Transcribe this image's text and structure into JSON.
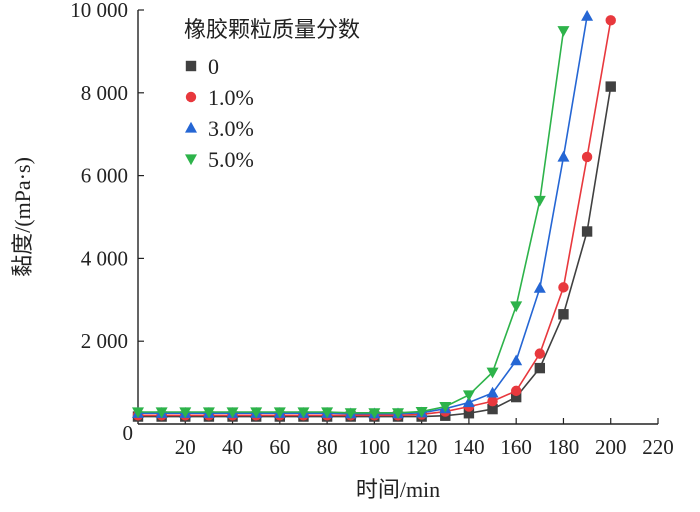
{
  "chart_data": {
    "type": "line",
    "title": "",
    "xlabel": "时间/min",
    "ylabel": "黏度/(mPa·s)",
    "xlim": [
      0,
      220
    ],
    "ylim": [
      0,
      10000
    ],
    "x_ticks": [
      "20",
      "40",
      "60",
      "80",
      "100",
      "120",
      "140",
      "160",
      "180",
      "200",
      "220"
    ],
    "y_ticks": [
      "0",
      "2 000",
      "4 000",
      "6 000",
      "8 000",
      "10 000"
    ],
    "grid": false,
    "legend": {
      "title": "橡胶颗粒质量分数",
      "placement": "top-left"
    },
    "series": [
      {
        "name": "0",
        "color": "#404040",
        "marker": "square",
        "x": [
          0,
          10,
          20,
          30,
          40,
          50,
          60,
          70,
          80,
          90,
          100,
          110,
          120,
          130,
          140,
          150,
          160,
          170,
          180,
          190,
          200
        ],
        "y": [
          180,
          180,
          180,
          180,
          180,
          180,
          180,
          180,
          180,
          180,
          180,
          180,
          180,
          200,
          260,
          360,
          650,
          1350,
          2650,
          4650,
          8150
        ]
      },
      {
        "name": "1.0%",
        "color": "#e8383d",
        "marker": "circle",
        "x": [
          0,
          10,
          20,
          30,
          40,
          50,
          60,
          70,
          80,
          90,
          100,
          110,
          120,
          130,
          140,
          150,
          160,
          170,
          180,
          190,
          200
        ],
        "y": [
          210,
          210,
          210,
          210,
          210,
          210,
          210,
          210,
          210,
          210,
          210,
          210,
          230,
          300,
          420,
          550,
          800,
          1700,
          3300,
          6450,
          9750
        ]
      },
      {
        "name": "3.0%",
        "color": "#2566d4",
        "marker": "triangle-up",
        "x": [
          0,
          10,
          20,
          30,
          40,
          50,
          60,
          70,
          80,
          90,
          100,
          110,
          120,
          130,
          140,
          150,
          160,
          170,
          180,
          190
        ],
        "y": [
          260,
          260,
          260,
          260,
          260,
          260,
          260,
          260,
          260,
          250,
          250,
          250,
          270,
          370,
          520,
          750,
          1530,
          3280,
          6450,
          9850
        ]
      },
      {
        "name": "5.0%",
        "color": "#2db34a",
        "marker": "triangle-down",
        "x": [
          0,
          10,
          20,
          30,
          40,
          50,
          60,
          70,
          80,
          90,
          100,
          110,
          120,
          130,
          140,
          150,
          160,
          170,
          180
        ],
        "y": [
          290,
          290,
          290,
          290,
          290,
          290,
          290,
          290,
          290,
          270,
          270,
          270,
          300,
          420,
          700,
          1250,
          2850,
          5400,
          9500
        ]
      }
    ]
  }
}
